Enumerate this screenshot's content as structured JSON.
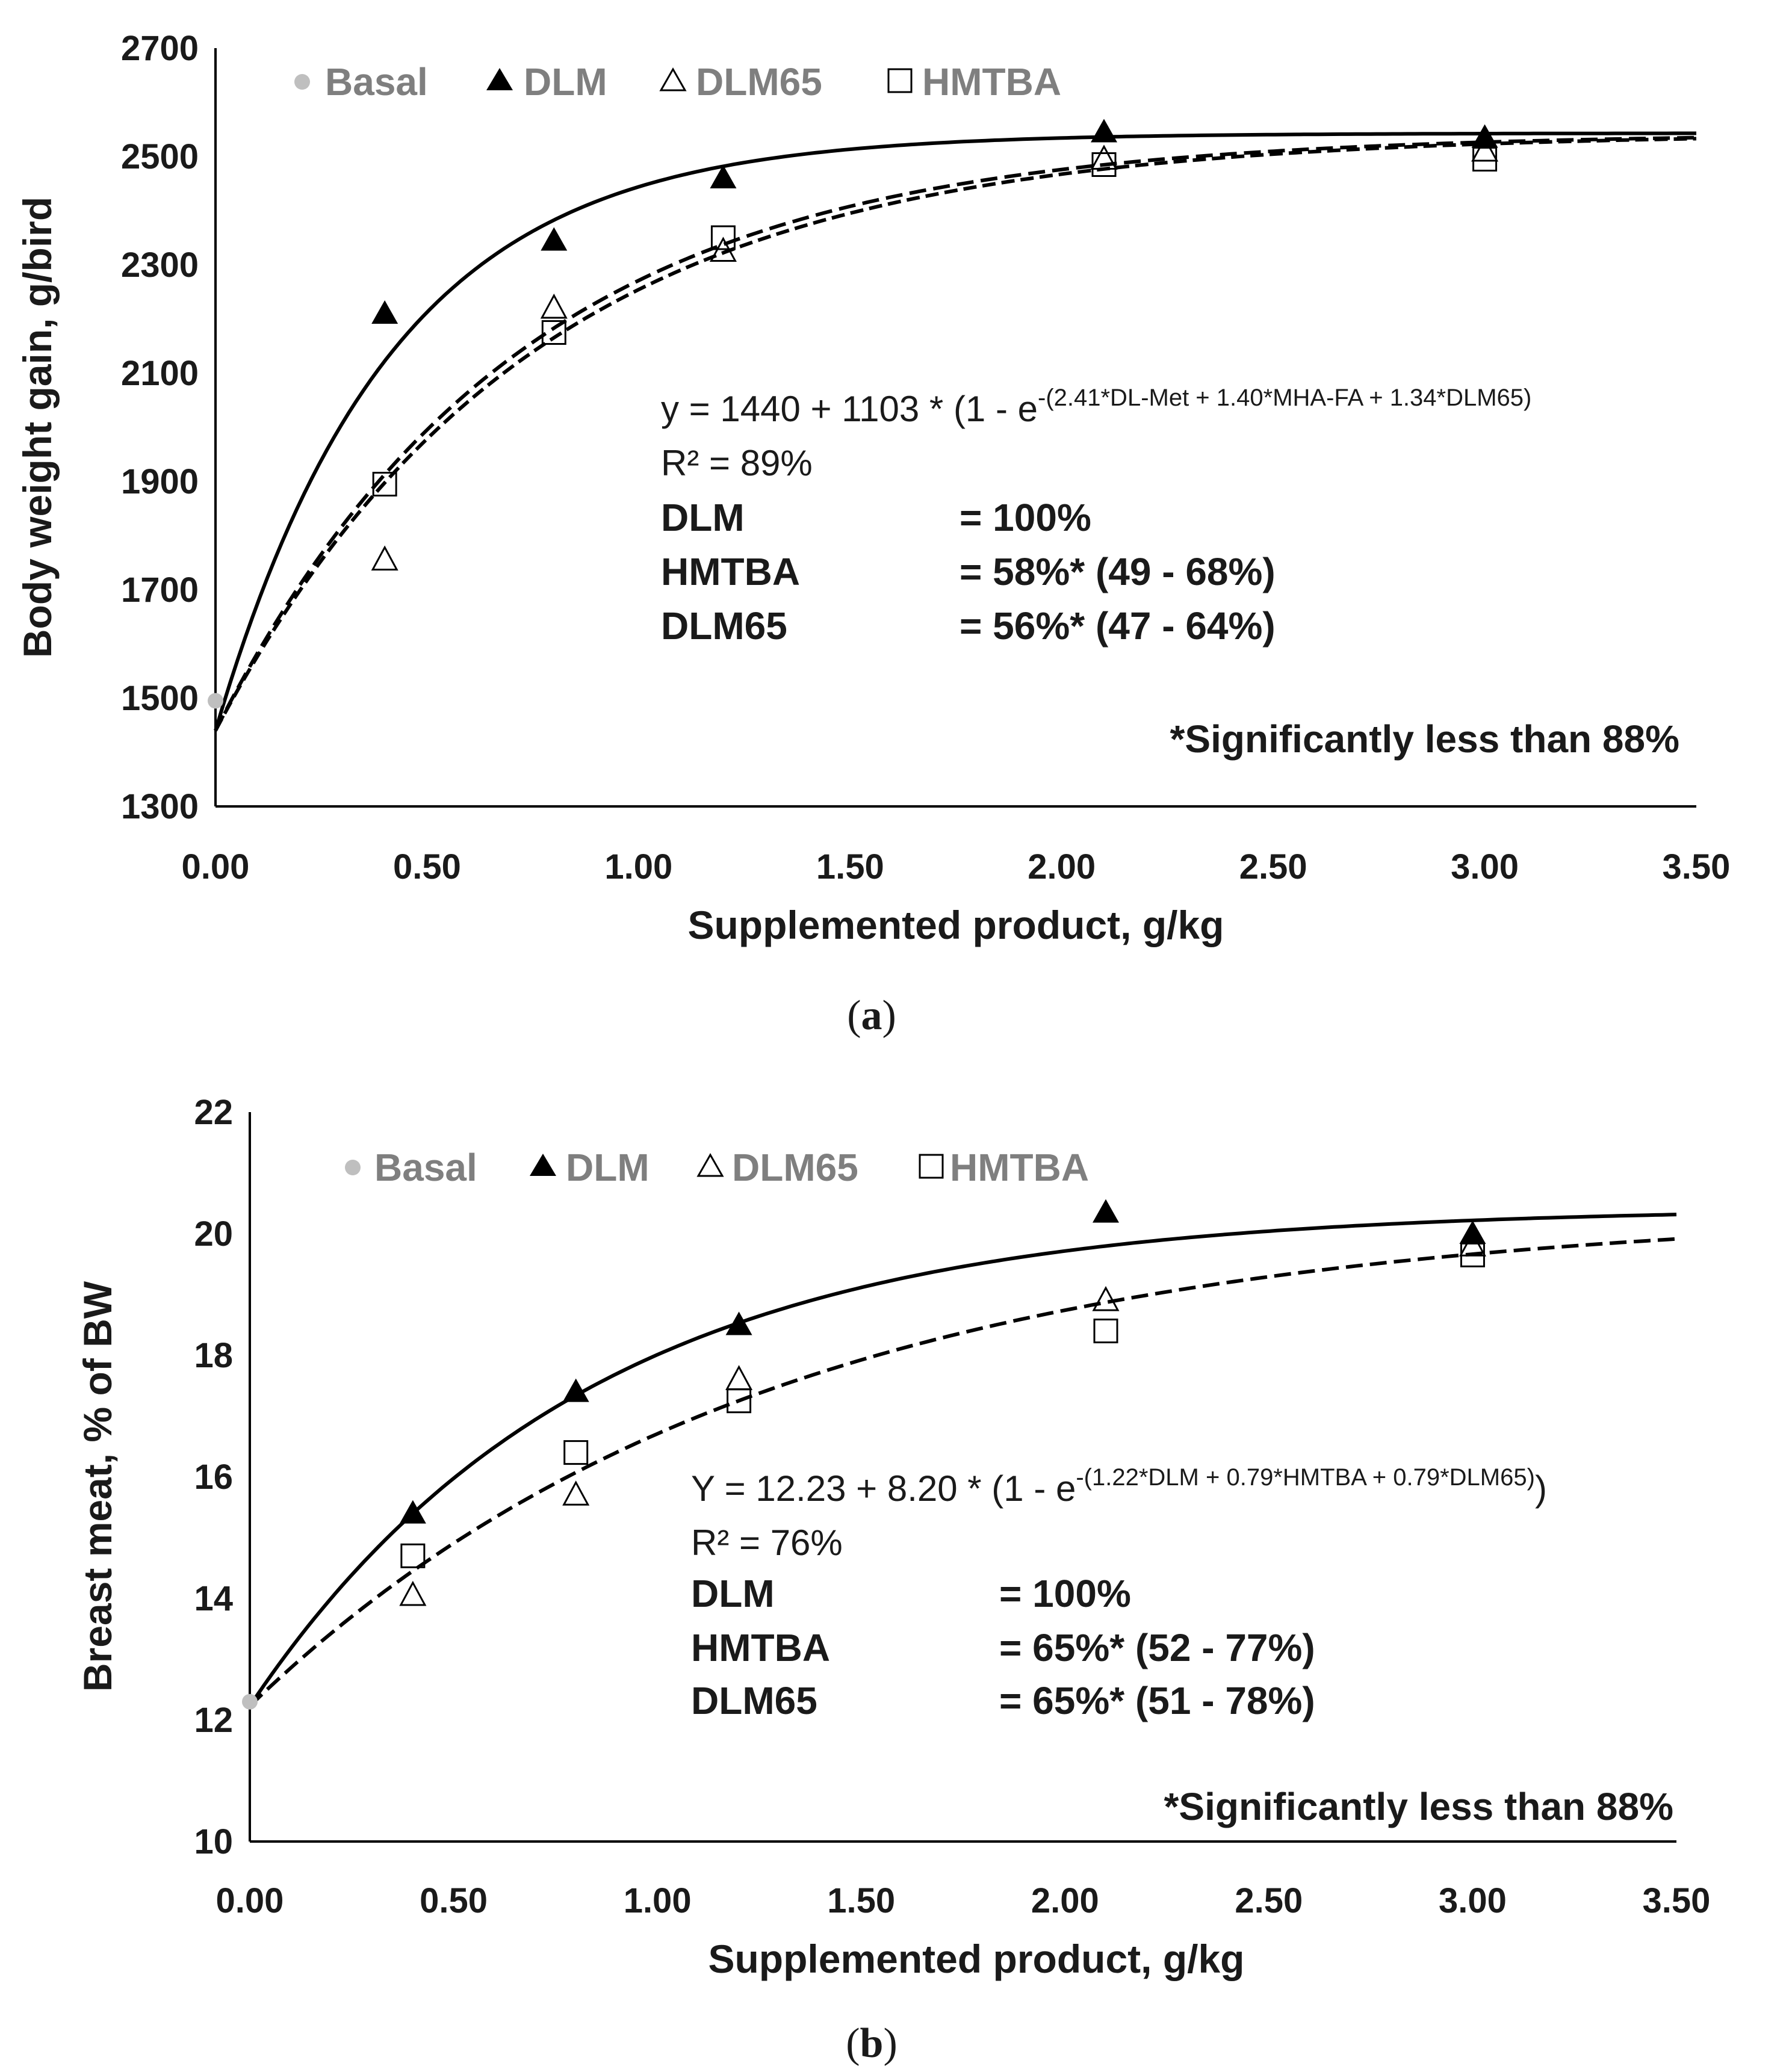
{
  "chart_data": [
    {
      "type": "scatter",
      "panel_label": "a",
      "xlabel": "Supplemented product, g/kg",
      "ylabel": "Body weight gain, g/bird",
      "xlim": [
        0,
        3.5
      ],
      "ylim": [
        1300,
        2700
      ],
      "xticks": [
        "0.00",
        "0.50",
        "1.00",
        "1.50",
        "2.00",
        "2.50",
        "3.00",
        "3.50"
      ],
      "yticks": [
        "1300",
        "1500",
        "1700",
        "1900",
        "2100",
        "2300",
        "2500",
        "2700"
      ],
      "legend": [
        {
          "name": "Basal",
          "marker": "gray-dot"
        },
        {
          "name": "DLM",
          "marker": "filled-triangle"
        },
        {
          "name": "DLM65",
          "marker": "open-triangle"
        },
        {
          "name": "HMTBA",
          "marker": "open-square"
        }
      ],
      "series": [
        {
          "name": "Basal",
          "marker": "gray-dot",
          "points": [
            [
              0.0,
              1495
            ]
          ]
        },
        {
          "name": "DLM",
          "marker": "filled-triangle",
          "points": [
            [
              0.4,
              2210
            ],
            [
              0.8,
              2345
            ],
            [
              1.2,
              2460
            ],
            [
              2.1,
              2545
            ],
            [
              3.0,
              2535
            ]
          ]
        },
        {
          "name": "DLM65",
          "marker": "open-triangle",
          "points": [
            [
              0.4,
              1755
            ],
            [
              0.8,
              2220
            ],
            [
              1.2,
              2325
            ],
            [
              2.1,
              2495
            ],
            [
              3.0,
              2510
            ]
          ]
        },
        {
          "name": "HMTBA",
          "marker": "open-square",
          "points": [
            [
              0.4,
              1895
            ],
            [
              0.8,
              2175
            ],
            [
              1.2,
              2350
            ],
            [
              2.1,
              2485
            ],
            [
              3.0,
              2495
            ]
          ]
        }
      ],
      "curves": [
        {
          "name": "DLM fit",
          "style": "solid",
          "a": 1440,
          "b": 1103,
          "c": 2.41
        },
        {
          "name": "HMTBA fit",
          "style": "dashed",
          "a": 1440,
          "b": 1103,
          "c": 1.4
        },
        {
          "name": "DLM65 fit",
          "style": "dashed",
          "a": 1440,
          "b": 1103,
          "c": 1.34
        }
      ],
      "equation_main": "y = 1440 + 1103 * (1 - e",
      "equation_exp": "-(2.41*DL-Met + 1.40*MHA-FA + 1.34*DLM65)",
      "r2": "R² = 89%",
      "efficacy": [
        {
          "name": "DLM",
          "value": "= 100%"
        },
        {
          "name": "HMTBA",
          "value": "= 58%*  (49 - 68%)"
        },
        {
          "name": "DLM65",
          "value": "= 56%*  (47 - 64%)"
        }
      ],
      "note": "*Significantly  less than 88%",
      "caption_open": "(",
      "caption_letter": "a",
      "caption_close": ")"
    },
    {
      "type": "scatter",
      "panel_label": "b",
      "xlabel": "Supplemented product, g/kg",
      "ylabel": "Breast meat, % of BW",
      "xlim": [
        0,
        3.5
      ],
      "ylim": [
        10,
        22
      ],
      "xticks": [
        "0.00",
        "0.50",
        "1.00",
        "1.50",
        "2.00",
        "2.50",
        "3.00",
        "3.50"
      ],
      "yticks": [
        "10",
        "12",
        "14",
        "16",
        "18",
        "20",
        "22"
      ],
      "legend": [
        {
          "name": "Basal",
          "marker": "gray-dot"
        },
        {
          "name": "DLM",
          "marker": "filled-triangle"
        },
        {
          "name": "DLM65",
          "marker": "open-triangle"
        },
        {
          "name": "HMTBA",
          "marker": "open-square"
        }
      ],
      "series": [
        {
          "name": "Basal",
          "marker": "gray-dot",
          "points": [
            [
              0.0,
              12.3
            ]
          ]
        },
        {
          "name": "DLM",
          "marker": "filled-triangle",
          "points": [
            [
              0.4,
              15.4
            ],
            [
              0.8,
              17.4
            ],
            [
              1.2,
              18.5
            ],
            [
              2.1,
              20.35
            ],
            [
              3.0,
              20.0
            ]
          ]
        },
        {
          "name": "DLM65",
          "marker": "open-triangle",
          "points": [
            [
              0.4,
              14.05
            ],
            [
              0.8,
              15.7
            ],
            [
              1.2,
              17.6
            ],
            [
              2.1,
              18.9
            ],
            [
              3.0,
              19.8
            ]
          ]
        },
        {
          "name": "HMTBA",
          "marker": "open-square",
          "points": [
            [
              0.4,
              14.7
            ],
            [
              0.8,
              16.4
            ],
            [
              1.2,
              17.25
            ],
            [
              2.1,
              18.4
            ],
            [
              3.0,
              19.65
            ]
          ]
        }
      ],
      "curves": [
        {
          "name": "DLM fit",
          "style": "solid",
          "a": 12.23,
          "b": 8.2,
          "c": 1.22
        },
        {
          "name": "HMTBA / DLM65 fit",
          "style": "dashed",
          "a": 12.23,
          "b": 8.2,
          "c": 0.79
        }
      ],
      "equation_main": "Y = 12.23 + 8.20 * (1 - e",
      "equation_exp": "-(1.22*DLM + 0.79*HMTBA + 0.79*DLM65)",
      "equation_tail": ")",
      "r2": "R² = 76%",
      "efficacy": [
        {
          "name": "DLM",
          "value": "= 100%"
        },
        {
          "name": "HMTBA",
          "value": "= 65%* (52 - 77%)"
        },
        {
          "name": "DLM65",
          "value": "= 65%* (51 - 78%)"
        }
      ],
      "note": "*Significantly less than 88%",
      "caption_open": "(",
      "caption_letter": "b",
      "caption_close": ")"
    }
  ]
}
